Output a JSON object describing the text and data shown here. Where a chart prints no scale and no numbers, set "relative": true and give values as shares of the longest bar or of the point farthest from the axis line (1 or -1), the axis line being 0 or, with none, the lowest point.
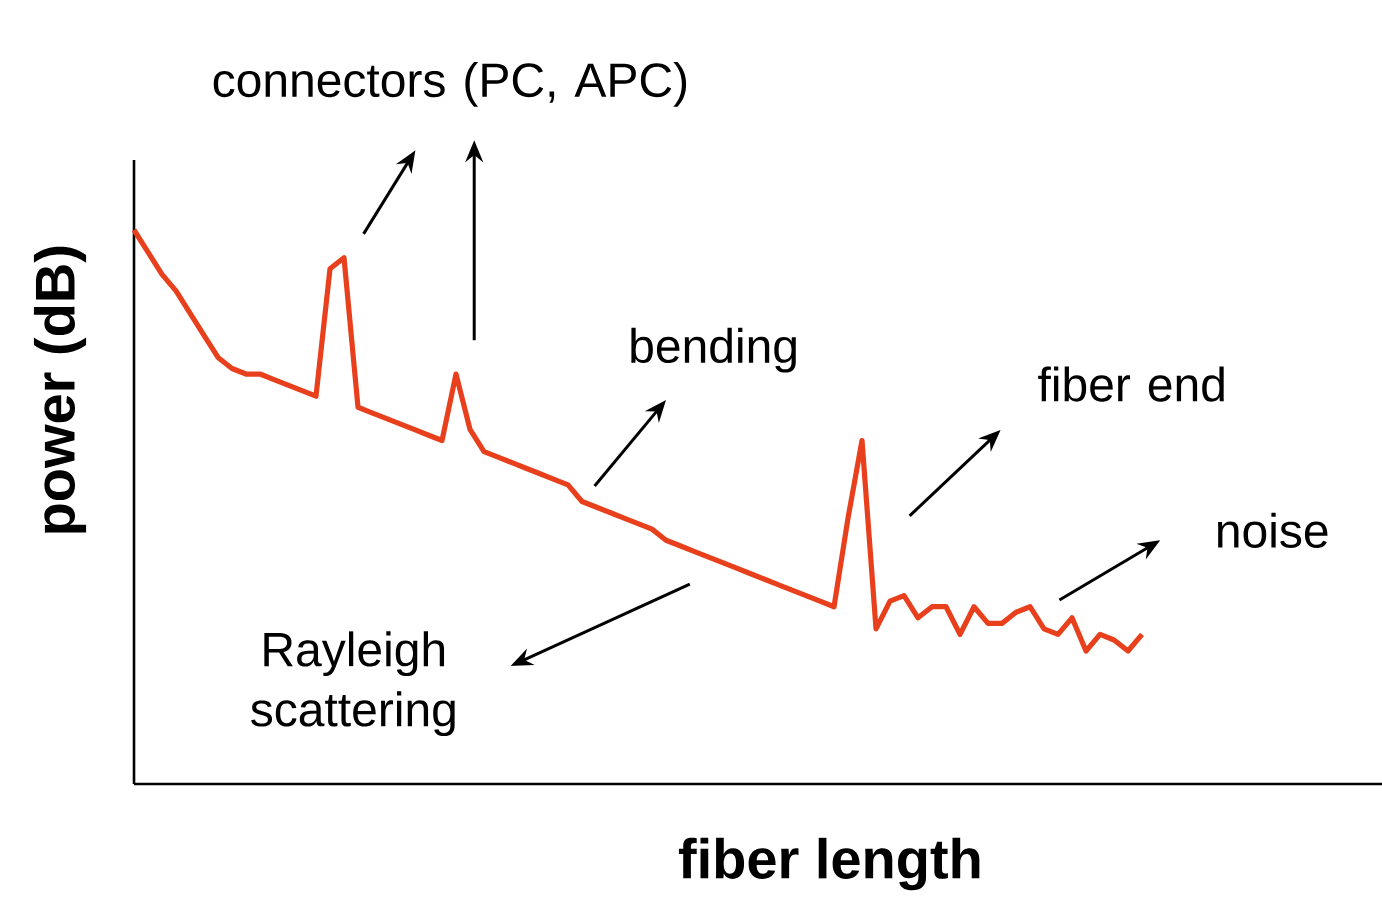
{
  "chart_data": {
    "type": "line",
    "relative": true,
    "color": "#e8401c",
    "xlabel": "fiber length",
    "ylabel": "power (dB)",
    "annotations": [
      "connectors (PC, APC)",
      "bending",
      "fiber end",
      "noise",
      "Rayleigh scattering"
    ],
    "categories": [
      null,
      null,
      null,
      null,
      null,
      null,
      null,
      null,
      null,
      null,
      null,
      null,
      null,
      null,
      null,
      null,
      null,
      null,
      null,
      null,
      null,
      null,
      null,
      null,
      null,
      null,
      null,
      null,
      null,
      null,
      null,
      null,
      null,
      null,
      null,
      null,
      null,
      null,
      null,
      null,
      null,
      null,
      null,
      null,
      null,
      null,
      null,
      null,
      null,
      null,
      null,
      null,
      null,
      null,
      null,
      null,
      null,
      null,
      null,
      null,
      null,
      null,
      null,
      null,
      null,
      null,
      null,
      null,
      null,
      null,
      null,
      null,
      null
    ],
    "values": [
      1.0,
      0.96,
      0.92,
      0.89,
      0.85,
      0.81,
      0.77,
      0.75,
      0.74,
      0.74,
      0.73,
      0.72,
      0.71,
      0.7,
      0.93,
      0.95,
      0.68,
      0.67,
      0.66,
      0.65,
      0.64,
      0.63,
      0.62,
      0.74,
      0.64,
      0.6,
      0.59,
      0.58,
      0.57,
      0.56,
      0.55,
      0.54,
      0.51,
      0.5,
      0.49,
      0.48,
      0.47,
      0.46,
      0.44,
      0.43,
      0.42,
      0.41,
      0.4,
      0.39,
      0.38,
      0.37,
      0.36,
      0.35,
      0.34,
      0.33,
      0.32,
      0.48,
      0.62,
      0.28,
      0.33,
      0.34,
      0.3,
      0.32,
      0.32,
      0.27,
      0.32,
      0.29,
      0.29,
      0.31,
      0.32,
      0.28,
      0.27,
      0.3,
      0.24,
      0.27,
      0.26,
      0.24,
      0.27
    ]
  }
}
